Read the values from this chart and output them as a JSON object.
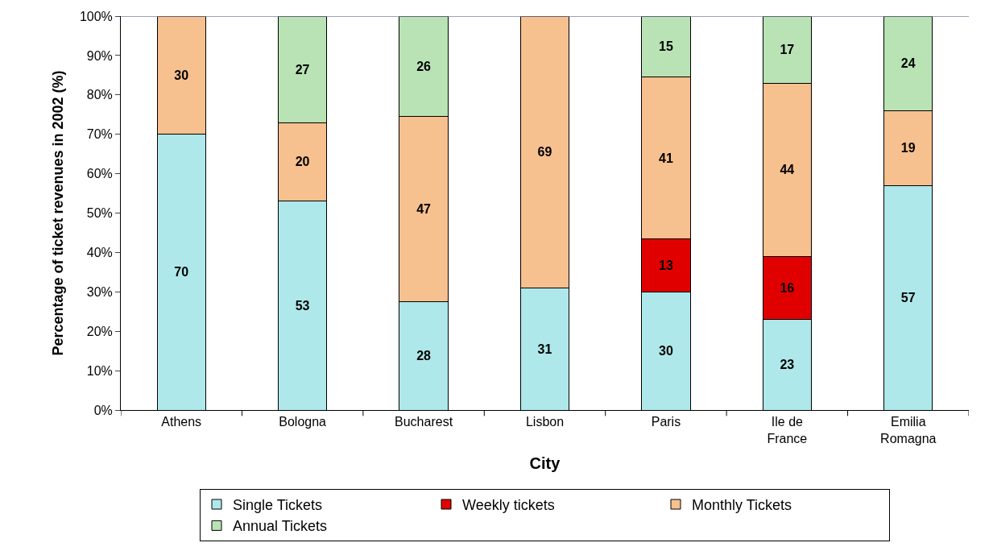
{
  "chart_data": {
    "type": "bar",
    "stacked": true,
    "xlabel": "City",
    "ylabel": "Percentage of ticket revenues in 2002 (%)",
    "categories": [
      "Athens",
      "Bologna",
      "Bucharest",
      "Lisbon",
      "Paris",
      "Ile de France",
      "Emilia Romagna"
    ],
    "series": [
      {
        "name": "Single Tickets",
        "color": "#aee8ea",
        "values": [
          70,
          53,
          27.5,
          31,
          30,
          23,
          57
        ],
        "value_labels": [
          "70",
          "53",
          "28",
          "31",
          "30",
          "23",
          "57"
        ]
      },
      {
        "name": "Weekly tickets",
        "color": "#e00000",
        "values": [
          null,
          null,
          null,
          null,
          13.5,
          16,
          null
        ],
        "value_labels": [
          null,
          null,
          null,
          null,
          "13",
          "16",
          null
        ]
      },
      {
        "name": "Monthly Tickets",
        "color": "#f7c08f",
        "values": [
          30,
          20,
          47,
          69,
          41,
          44,
          19
        ],
        "value_labels": [
          "30",
          "20",
          "47",
          "69",
          "41",
          "44",
          "19"
        ]
      },
      {
        "name": "Annual Tickets",
        "color": "#b9e3b5",
        "values": [
          null,
          27,
          25.5,
          null,
          15.5,
          17,
          24
        ],
        "value_labels": [
          null,
          "27",
          "26",
          null,
          "15",
          "17",
          "24"
        ]
      }
    ],
    "ylim": [
      0,
      100
    ],
    "yticks": [
      {
        "value": 0,
        "label": "0%"
      },
      {
        "value": 10,
        "label": "10%"
      },
      {
        "value": 20,
        "label": "20%"
      },
      {
        "value": 30,
        "label": "30%"
      },
      {
        "value": 40,
        "label": "40%"
      },
      {
        "value": 50,
        "label": "50%"
      },
      {
        "value": 60,
        "label": "60%"
      },
      {
        "value": 70,
        "label": "70%"
      },
      {
        "value": 80,
        "label": "80%"
      },
      {
        "value": 90,
        "label": "90%"
      },
      {
        "value": 100,
        "label": "100%"
      }
    ],
    "legend": "bottom"
  }
}
